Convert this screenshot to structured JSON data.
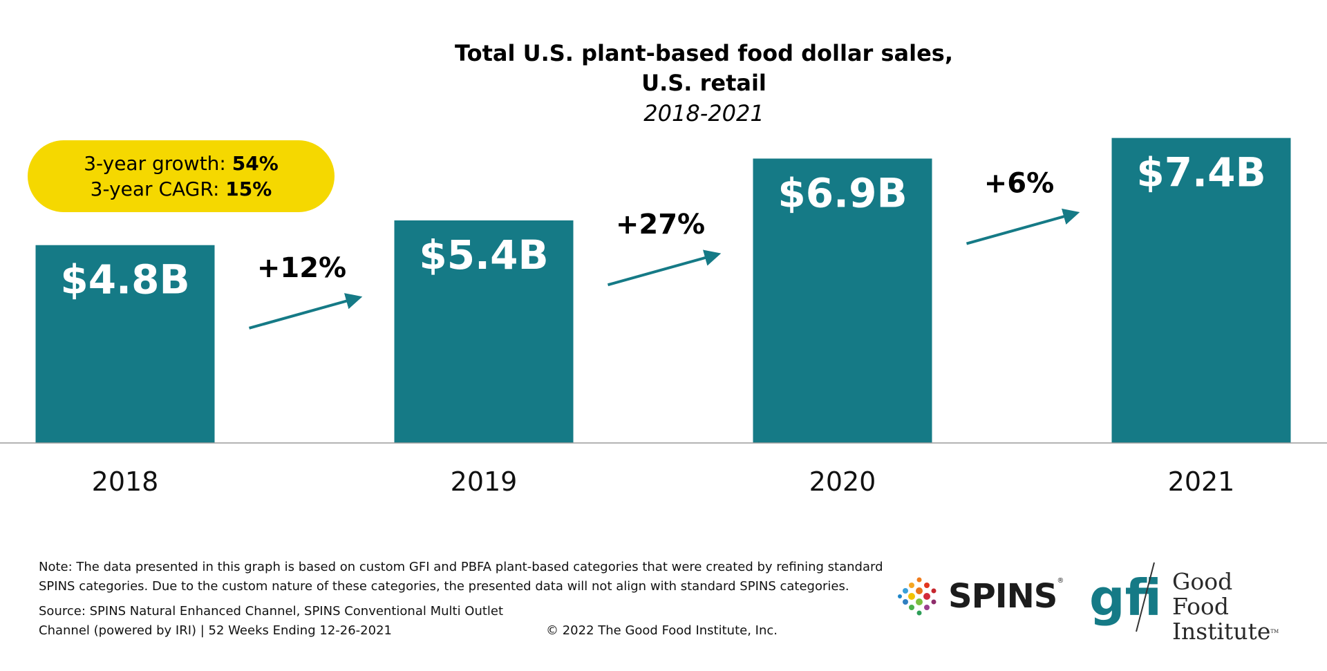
{
  "title": {
    "line1": "Total U.S. plant-based food dollar sales,",
    "line2": "U.S. retail",
    "line3": "2018-2021"
  },
  "callout": {
    "growth_label": "3-year growth: ",
    "growth_value": "54%",
    "cagr_label": "3-year CAGR: ",
    "cagr_value": "15%"
  },
  "colors": {
    "bar": "#157a86",
    "arrow": "#157a86",
    "callout": "#f5d800",
    "axis": "#9a9a9a"
  },
  "chart_data": {
    "type": "bar",
    "title": "Total U.S. plant-based food dollar sales, U.S. retail 2018-2021",
    "categories": [
      "2018",
      "2019",
      "2020",
      "2021"
    ],
    "values": [
      4.8,
      5.4,
      6.9,
      7.4
    ],
    "value_labels": [
      "$4.8B",
      "$5.4B",
      "$6.9B",
      "$7.4B"
    ],
    "units": "USD billions",
    "growth_labels": [
      "+12%",
      "+27%",
      "+6%"
    ],
    "xlabel": "",
    "ylabel": "",
    "grid": false
  },
  "footer": {
    "note_line1": "Note: The data presented in this graph is based on custom GFI and PBFA plant-based categories that were created by refining standard",
    "note_line2": "SPINS categories. Due to the custom nature of these categories, the presented data will not align with standard SPINS categories.",
    "source_line1": "Source: SPINS Natural Enhanced Channel, SPINS Conventional Multi Outlet",
    "source_line2": "Channel (powered by IRI) | 52 Weeks Ending 12-26-2021",
    "copyright": "© 2022 The Good Food Institute, Inc."
  },
  "logos": {
    "spins_text": "SPINS",
    "spins_reg": "®",
    "gfi_mark": "gfi",
    "gfi_line1": "Good Food",
    "gfi_line2": "Institute",
    "gfi_tm": "TM"
  }
}
